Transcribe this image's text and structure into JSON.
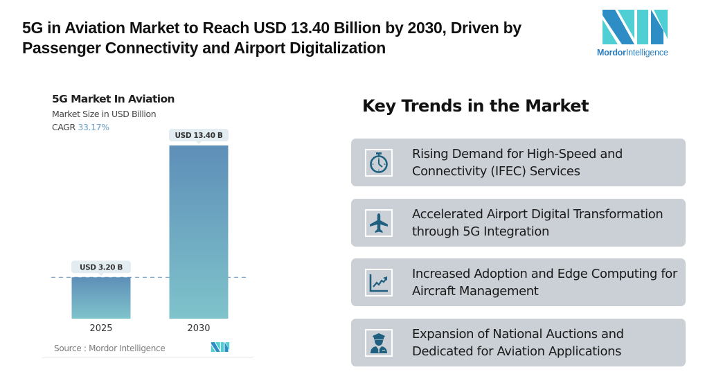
{
  "headline": "5G in Aviation Market to Reach USD 13.40 Billion by 2030, Driven by Passenger Connectivity and Airport Digitalization",
  "brand": {
    "name_bold": "Mordor",
    "name_light": "Intelligence",
    "colors": {
      "dark": "#2e8dc4",
      "light": "#4fcfd4"
    }
  },
  "chart_data": {
    "type": "bar",
    "title": "5G Market In Aviation",
    "subtitle": "Market Size in USD Billion",
    "cagr_label": "CAGR",
    "cagr_value": "33.17%",
    "categories": [
      "2025",
      "2030"
    ],
    "values": [
      3.2,
      13.4
    ],
    "data_labels": [
      "USD 3.20 B",
      "USD 13.40 B"
    ],
    "xlabel": "",
    "ylabel": "Market Size (USD Billion)",
    "ylim": [
      0,
      13.4
    ],
    "grid": false,
    "reference_line": {
      "value": 3.2,
      "style": "dashed"
    },
    "bar_gradient": {
      "top": "#5e8fb8",
      "bottom": "#7fc3cb"
    },
    "source": "Source :  Mordor Intelligence"
  },
  "trends": {
    "title": "Key Trends in the Market",
    "items": [
      {
        "icon": "stopwatch-icon",
        "text": "Rising Demand for High-Speed and Connectivity (IFEC) Services"
      },
      {
        "icon": "airplane-icon",
        "text": "Accelerated Airport Digital Transformation through 5G Integration"
      },
      {
        "icon": "growth-chart-icon",
        "text": "Increased Adoption and Edge Computing for Aircraft Management"
      },
      {
        "icon": "pilot-icon",
        "text": "Expansion of National Auctions and Dedicated for Aviation Applications"
      }
    ],
    "icon_color": "#1f5f80",
    "card_color": "#cbd0d6"
  }
}
